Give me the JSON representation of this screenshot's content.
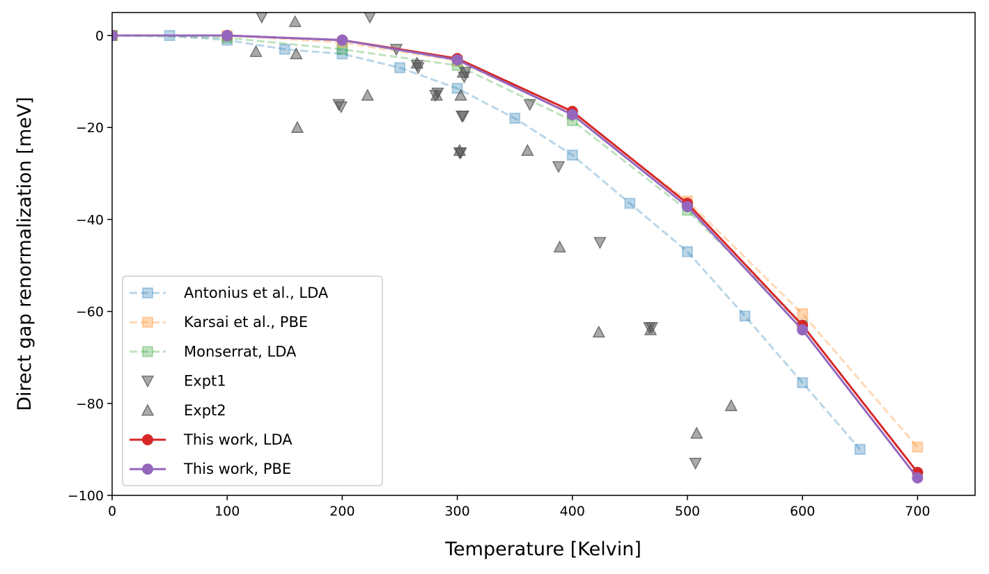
{
  "chart_data": {
    "type": "line",
    "xlabel": "Temperature [Kelvin]",
    "ylabel": "Direct gap renormalization [meV]",
    "xlim": [
      0,
      750
    ],
    "ylim": [
      -100,
      5
    ],
    "xticks": [
      0,
      100,
      200,
      300,
      400,
      500,
      600,
      700
    ],
    "yticks": [
      0,
      -20,
      -40,
      -60,
      -80,
      -100
    ],
    "xtick_labels": [
      "0",
      "100",
      "200",
      "300",
      "400",
      "500",
      "600",
      "700"
    ],
    "ytick_labels": [
      "0",
      "−20",
      "−40",
      "−60",
      "−80",
      "−100"
    ],
    "grid": false,
    "legend_position": "lower-left",
    "series": [
      {
        "name": "Antonius et al., LDA",
        "color": "#1f77b4",
        "style": "dashed-square-faded",
        "x": [
          0,
          50,
          100,
          150,
          200,
          250,
          300,
          350,
          400,
          450,
          500,
          550,
          600,
          650
        ],
        "y": [
          0,
          0,
          -1,
          -3,
          -4,
          -7,
          -11.5,
          -18,
          -26,
          -36.5,
          -47,
          -61,
          -75.5,
          -90
        ]
      },
      {
        "name": "Karsai et al., PBE",
        "color": "#ff7f0e",
        "style": "dashed-square-faded",
        "x": [
          0,
          100,
          200,
          300,
          400,
          500,
          600,
          700
        ],
        "y": [
          0,
          0,
          -1.5,
          -5.5,
          -17,
          -36,
          -60.5,
          -89.5
        ]
      },
      {
        "name": "Monserrat, LDA",
        "color": "#2ca02c",
        "style": "dashed-square-faded",
        "x": [
          0,
          100,
          200,
          300,
          400,
          500,
          600
        ],
        "y": [
          0,
          -0.5,
          -3,
          -6.5,
          -18.5,
          -38,
          -63
        ]
      },
      {
        "name": "Expt1",
        "color": "#555555",
        "style": "triangle-down",
        "x": [
          130,
          197,
          199,
          224,
          247,
          265,
          266,
          281,
          283,
          302,
          303,
          304,
          305,
          306,
          307,
          363,
          388,
          424,
          467,
          469,
          507
        ],
        "y": [
          4,
          -15,
          -15.5,
          4,
          -3,
          -6.5,
          -7,
          -13,
          -12.5,
          -25.5,
          -25.5,
          -17.5,
          -17.5,
          -9,
          -8,
          -15,
          -28.5,
          -45,
          -63.5,
          -63.5,
          -93
        ]
      },
      {
        "name": "Expt2",
        "color": "#555555",
        "style": "triangle-up",
        "x": [
          125,
          159,
          160,
          161,
          222,
          265,
          282,
          302,
          303,
          305,
          361,
          389,
          423,
          468,
          508,
          538
        ],
        "y": [
          -3.5,
          3,
          -4,
          -20,
          -13,
          -6,
          -13,
          -25,
          -13,
          -8,
          -25,
          -46,
          -64.5,
          -64,
          -86.5,
          -80.5
        ]
      },
      {
        "name": "This work, LDA",
        "color": "#d62728",
        "style": "solid-circle",
        "x": [
          0,
          100,
          200,
          300,
          400,
          500,
          600,
          700
        ],
        "y": [
          0,
          0,
          -1,
          -5,
          -16.5,
          -36.5,
          -63,
          -95
        ]
      },
      {
        "name": "This work, PBE",
        "color": "#9467bd",
        "style": "solid-circle",
        "x": [
          0,
          100,
          200,
          300,
          400,
          500,
          600,
          700
        ],
        "y": [
          0,
          0,
          -1,
          -5.3,
          -17.2,
          -37.2,
          -64,
          -96.2
        ]
      }
    ]
  }
}
